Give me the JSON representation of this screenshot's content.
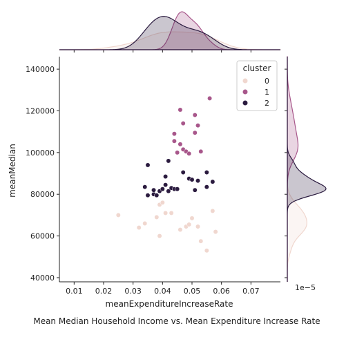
{
  "figure_caption": "Mean Median Household Income vs. Mean Expenditure Increase Rate",
  "chart_data": {
    "type": "scatter",
    "xlabel": "meanExpenditureIncreaseRate",
    "ylabel": "meanMedian",
    "x_scale_note": "1e−5",
    "xlim": [
      0.005,
      0.08
    ],
    "ylim": [
      38000,
      146000
    ],
    "x_ticks": [
      0.01,
      0.02,
      0.03,
      0.04,
      0.05,
      0.06,
      0.07
    ],
    "x_tick_labels": [
      "0.01",
      "0.02",
      "0.03",
      "0.04",
      "0.05",
      "0.06",
      "0.07"
    ],
    "y_ticks": [
      40000,
      60000,
      80000,
      100000,
      120000,
      140000
    ],
    "y_tick_labels": [
      "40000",
      "60000",
      "80000",
      "100000",
      "120000",
      "140000"
    ],
    "grid": false,
    "legend": {
      "title": "cluster",
      "placement": "top-right"
    },
    "marginals": {
      "top": "kde-x-by-cluster",
      "right": "kde-y-by-cluster"
    },
    "series": [
      {
        "name": "0",
        "color": "#f0d7cf",
        "points": [
          [
            0.025,
            70000
          ],
          [
            0.032,
            64000
          ],
          [
            0.034,
            66000
          ],
          [
            0.038,
            69000
          ],
          [
            0.039,
            75000
          ],
          [
            0.04,
            76000
          ],
          [
            0.041,
            71000
          ],
          [
            0.039,
            60000
          ],
          [
            0.043,
            71000
          ],
          [
            0.046,
            63000
          ],
          [
            0.048,
            64500
          ],
          [
            0.049,
            65500
          ],
          [
            0.05,
            68500
          ],
          [
            0.052,
            64500
          ],
          [
            0.053,
            57500
          ],
          [
            0.055,
            53000
          ],
          [
            0.057,
            72000
          ],
          [
            0.058,
            62000
          ]
        ]
      },
      {
        "name": "1",
        "color": "#a8578b",
        "points": [
          [
            0.044,
            105500
          ],
          [
            0.044,
            109000
          ],
          [
            0.045,
            100000
          ],
          [
            0.046,
            104000
          ],
          [
            0.046,
            120500
          ],
          [
            0.047,
            101500
          ],
          [
            0.047,
            114000
          ],
          [
            0.048,
            100500
          ],
          [
            0.049,
            99500
          ],
          [
            0.051,
            109500
          ],
          [
            0.051,
            118000
          ],
          [
            0.052,
            113000
          ],
          [
            0.053,
            100500
          ],
          [
            0.056,
            126000
          ]
        ]
      },
      {
        "name": "2",
        "color": "#2b1b3f",
        "points": [
          [
            0.034,
            83500
          ],
          [
            0.035,
            79500
          ],
          [
            0.035,
            94000
          ],
          [
            0.037,
            80000
          ],
          [
            0.037,
            82000
          ],
          [
            0.038,
            79500
          ],
          [
            0.039,
            81500
          ],
          [
            0.04,
            82500
          ],
          [
            0.041,
            84500
          ],
          [
            0.041,
            88500
          ],
          [
            0.042,
            96000
          ],
          [
            0.042,
            81500
          ],
          [
            0.043,
            83000
          ],
          [
            0.044,
            82500
          ],
          [
            0.045,
            82500
          ],
          [
            0.047,
            90500
          ],
          [
            0.049,
            87500
          ],
          [
            0.05,
            87000
          ],
          [
            0.051,
            82000
          ],
          [
            0.052,
            86500
          ],
          [
            0.055,
            83500
          ],
          [
            0.055,
            90500
          ],
          [
            0.057,
            86000
          ]
        ]
      }
    ]
  }
}
